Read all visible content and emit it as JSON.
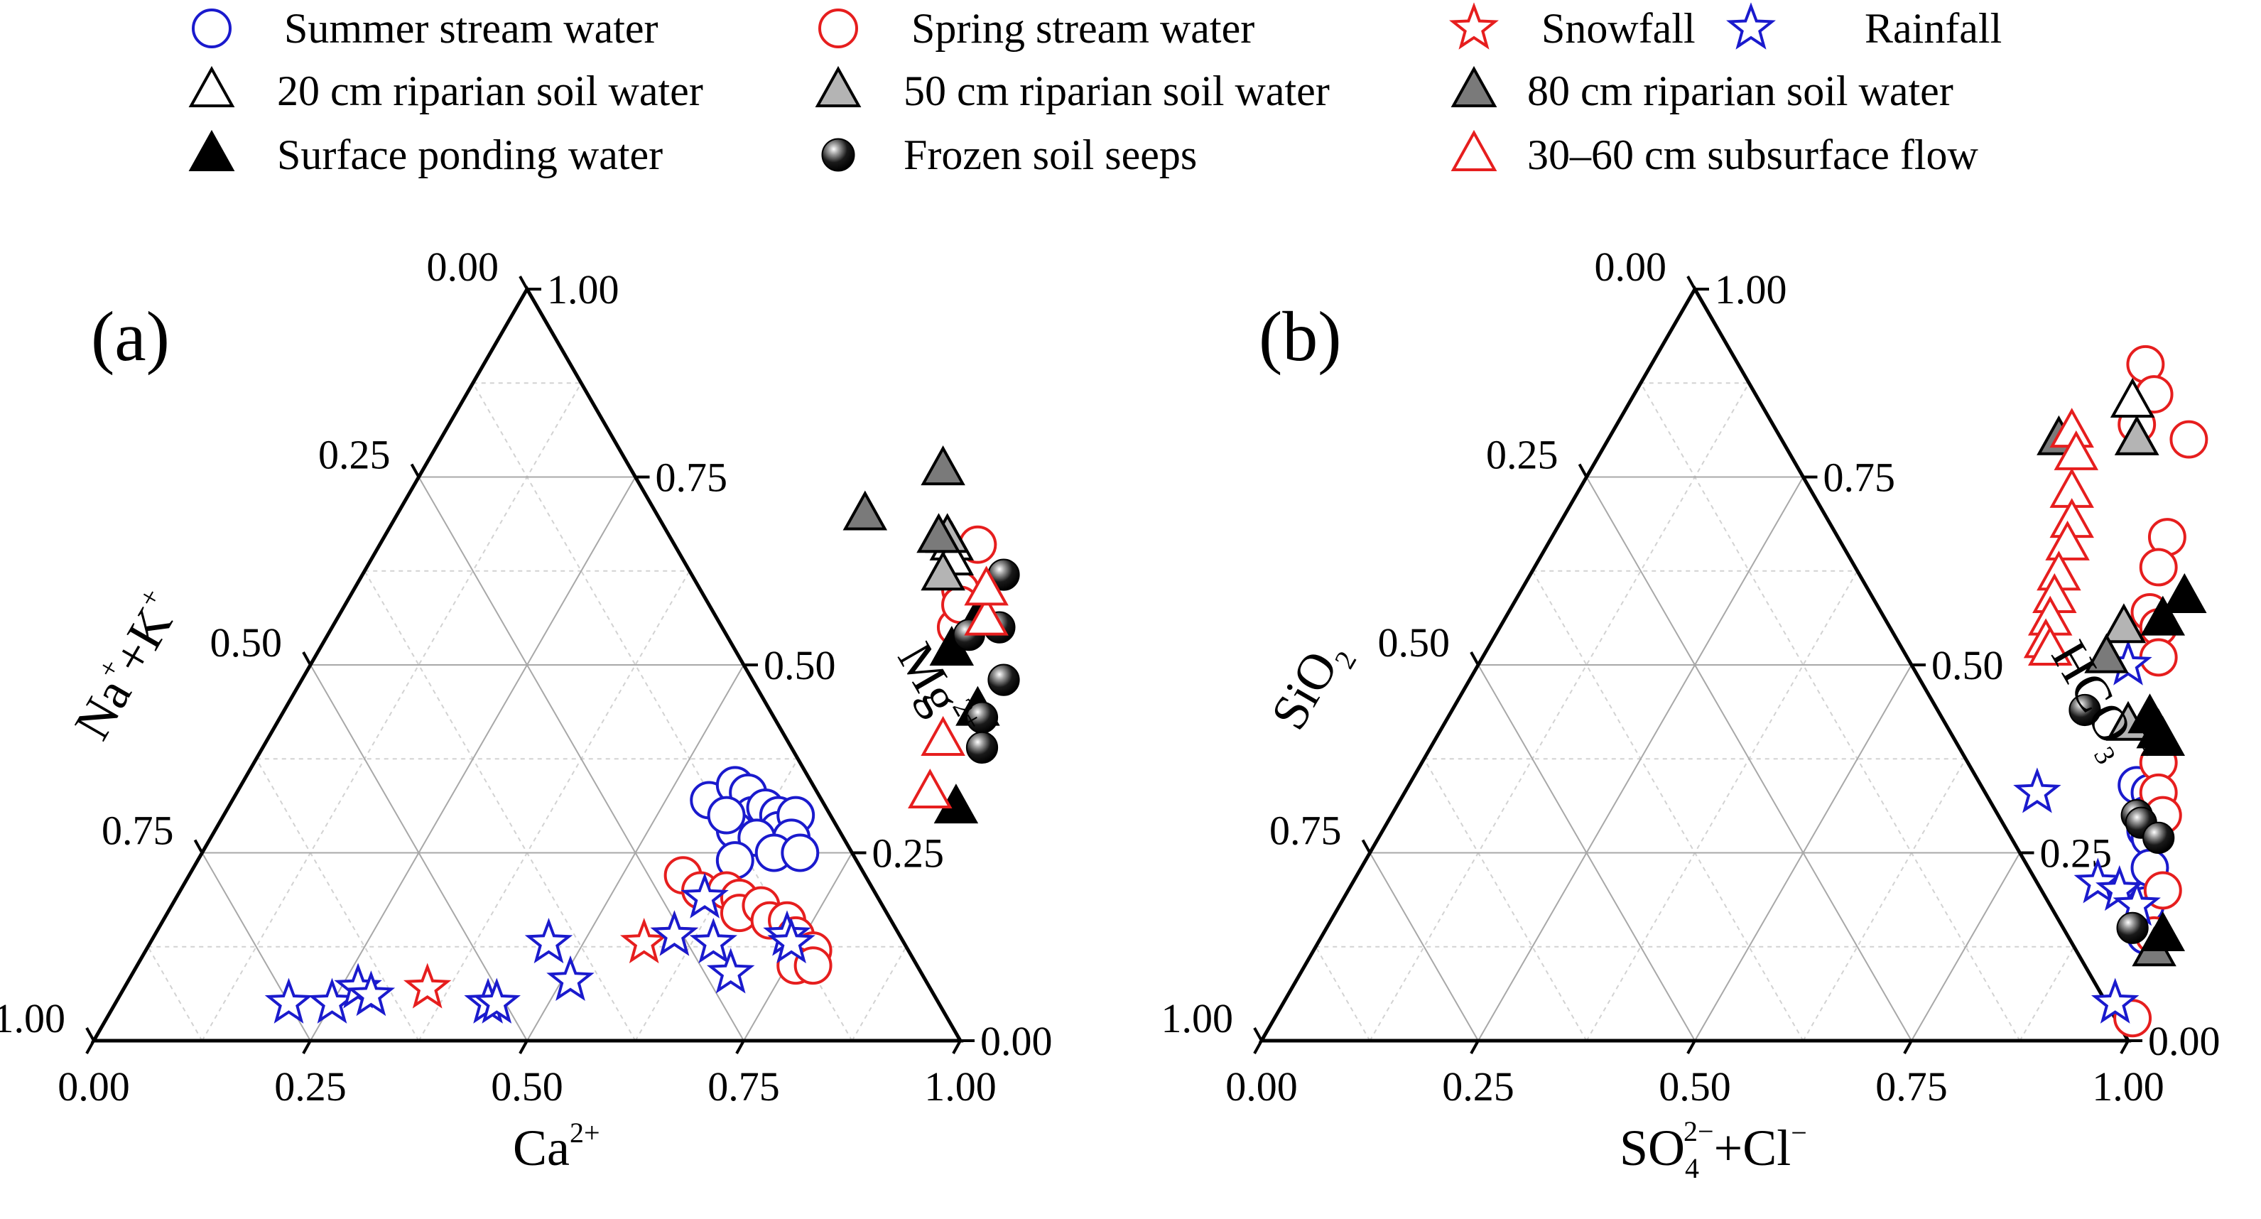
{
  "legend": {
    "items": [
      {
        "key": "summer_stream",
        "label": "Summer stream water"
      },
      {
        "key": "spring_stream",
        "label": "Spring stream water"
      },
      {
        "key": "snowfall",
        "label": "Snowfall"
      },
      {
        "key": "rainfall",
        "label": "Rainfall"
      },
      {
        "key": "soil20",
        "label": "20 cm riparian soil water"
      },
      {
        "key": "soil50",
        "label": "50 cm riparian soil water"
      },
      {
        "key": "soil80",
        "label": "80 cm riparian soil water"
      },
      {
        "key": "ponding",
        "label": "Surface ponding water"
      },
      {
        "key": "seeps",
        "label": "Frozen soil seeps"
      },
      {
        "key": "subsurface",
        "label": "30–60 cm subsurface flow"
      }
    ]
  },
  "chart_data": [
    {
      "type": "scatter",
      "subtype": "ternary",
      "panel_label": "(a)",
      "axes": {
        "bottom": {
          "title": "Ca",
          "title_sup": "2+",
          "ticks": [
            "0.00",
            "0.25",
            "0.50",
            "0.75",
            "1.00"
          ]
        },
        "right": {
          "title": "Mg",
          "title_sup": "2+",
          "ticks": [
            "0.00",
            "0.25",
            "0.50",
            "0.75",
            "1.00"
          ]
        },
        "left": {
          "title": "Na",
          "title_sup": "+",
          "title_mid": "+K",
          "title_sup2": "+",
          "ticks": [
            "1.00",
            "0.75",
            "0.50",
            "0.25",
            "0.00"
          ]
        }
      },
      "series": [
        {
          "name": "Summer stream water",
          "key": "summer_stream",
          "points": [
            [
              0.55,
              0.32
            ],
            [
              0.57,
              0.34
            ],
            [
              0.59,
              0.33
            ],
            [
              0.61,
              0.3
            ],
            [
              0.62,
              0.31
            ],
            [
              0.6,
              0.28
            ],
            [
              0.58,
              0.3
            ],
            [
              0.64,
              0.3
            ],
            [
              0.65,
              0.28
            ],
            [
              0.66,
              0.3
            ],
            [
              0.67,
              0.27
            ],
            [
              0.63,
              0.27
            ],
            [
              0.62,
              0.24
            ],
            [
              0.66,
              0.25
            ],
            [
              0.69,
              0.25
            ]
          ]
        },
        {
          "name": "Spring stream water",
          "key": "spring_stream",
          "points": [
            [
              0.57,
              0.22
            ],
            [
              0.6,
              0.2
            ],
            [
              0.63,
              0.2
            ],
            [
              0.65,
              0.19
            ],
            [
              0.66,
              0.17
            ],
            [
              0.68,
              0.18
            ],
            [
              0.7,
              0.16
            ],
            [
              0.72,
              0.16
            ],
            [
              0.74,
              0.14
            ],
            [
              0.77,
              0.12
            ],
            [
              0.76,
              0.1
            ],
            [
              0.78,
              0.1
            ],
            [
              0.69,
              0.66
            ],
            [
              0.7,
              0.6
            ],
            [
              0.72,
              0.55
            ],
            [
              0.71,
              0.58
            ]
          ]
        },
        {
          "name": "Snowfall",
          "key": "snowfall",
          "points": [
            [
              0.35,
              0.07
            ],
            [
              0.57,
              0.13
            ],
            [
              0.6,
              0.14
            ]
          ]
        },
        {
          "name": "Rainfall",
          "key": "rainfall",
          "points": [
            [
              0.2,
              0.05
            ],
            [
              0.25,
              0.05
            ],
            [
              0.27,
              0.07
            ],
            [
              0.29,
              0.06
            ],
            [
              0.43,
              0.05
            ],
            [
              0.44,
              0.05
            ],
            [
              0.46,
              0.13
            ],
            [
              0.51,
              0.08
            ],
            [
              0.6,
              0.14
            ],
            [
              0.65,
              0.13
            ],
            [
              0.69,
              0.09
            ],
            [
              0.73,
              0.14
            ],
            [
              0.74,
              0.13
            ],
            [
              0.61,
              0.19
            ]
          ]
        },
        {
          "name": "20 cm riparian soil water",
          "key": "soil20",
          "points": [
            [
              0.66,
              0.66
            ],
            [
              0.67,
              0.64
            ]
          ]
        },
        {
          "name": "50 cm riparian soil water",
          "key": "soil50",
          "points": [
            [
              0.65,
              0.67
            ],
            [
              0.67,
              0.62
            ]
          ]
        },
        {
          "name": "80 cm riparian soil water",
          "key": "soil80",
          "points": [
            [
              0.54,
              0.7
            ],
            [
              0.6,
              0.76
            ],
            [
              0.64,
              0.67
            ]
          ]
        },
        {
          "name": "Surface ponding water",
          "key": "ponding",
          "points": [
            [
              0.74,
              0.57
            ],
            [
              0.73,
              0.52
            ],
            [
              0.8,
              0.44
            ],
            [
              0.84,
              0.31
            ]
          ]
        },
        {
          "name": "Frozen soil seeps",
          "key": "seeps",
          "points": [
            [
              0.74,
              0.62
            ],
            [
              0.74,
              0.54
            ],
            [
              0.77,
              0.55
            ],
            [
              0.81,
              0.48
            ],
            [
              0.81,
              0.43
            ],
            [
              0.83,
              0.39
            ]
          ]
        },
        {
          "name": "30–60 cm subsurface flow",
          "key": "subsurface",
          "points": [
            [
              0.78,
              0.4
            ],
            [
              0.8,
              0.33
            ],
            [
              0.75,
              0.56
            ],
            [
              0.73,
              0.6
            ]
          ]
        }
      ]
    },
    {
      "type": "scatter",
      "subtype": "ternary",
      "panel_label": "(b)",
      "axes": {
        "bottom": {
          "title": "SO",
          "title_sub": "4",
          "title_sup": "2−",
          "title_tail": "+Cl",
          "title_tail_sup": "−",
          "ticks": [
            "0.00",
            "0.25",
            "0.50",
            "0.75",
            "1.00"
          ]
        },
        "right": {
          "title": "HCO",
          "title_sub": "3",
          "title_sup": "−",
          "ticks": [
            "0.00",
            "0.25",
            "0.50",
            "0.75",
            "1.00"
          ]
        },
        "left": {
          "title": "SiO",
          "title_sub": "2",
          "ticks": [
            "1.00",
            "0.75",
            "0.50",
            "0.25",
            "0.00"
          ]
        }
      },
      "series": [
        {
          "name": "Summer stream water",
          "key": "summer_stream",
          "points": [
            [
              0.84,
              0.34
            ],
            [
              0.86,
              0.33
            ],
            [
              0.87,
              0.3
            ],
            [
              0.88,
              0.28
            ],
            [
              0.89,
              0.27
            ],
            [
              0.91,
              0.23
            ],
            [
              0.93,
              0.18
            ],
            [
              0.95,
              0.14
            ]
          ]
        },
        {
          "name": "Spring stream water",
          "key": "spring_stream",
          "points": [
            [
              0.57,
              0.9
            ],
            [
              0.6,
              0.86
            ],
            [
              0.6,
              0.82
            ],
            [
              0.67,
              0.8
            ],
            [
              0.71,
              0.67
            ],
            [
              0.72,
              0.63
            ],
            [
              0.74,
              0.57
            ],
            [
              0.76,
              0.55
            ],
            [
              0.78,
              0.51
            ],
            [
              0.85,
              0.37
            ],
            [
              0.87,
              0.33
            ],
            [
              0.89,
              0.3
            ],
            [
              0.94,
              0.2
            ],
            [
              0.96,
              0.14
            ],
            [
              0.99,
              0.03
            ]
          ]
        },
        {
          "name": "Snowfall",
          "key": "snowfall",
          "points": []
        },
        {
          "name": "Rainfall",
          "key": "rainfall",
          "points": [
            [
              0.75,
              0.5
            ],
            [
              0.73,
              0.33
            ],
            [
              0.86,
              0.21
            ],
            [
              0.89,
              0.2
            ],
            [
              0.92,
              0.18
            ],
            [
              0.96,
              0.05
            ]
          ]
        },
        {
          "name": "20 cm riparian soil water",
          "key": "soil20",
          "points": [
            [
              0.58,
              0.85
            ],
            [
              0.61,
              0.8
            ]
          ]
        },
        {
          "name": "50 cm riparian soil water",
          "key": "soil50",
          "points": [
            [
              0.61,
              0.8
            ],
            [
              0.72,
              0.55
            ],
            [
              0.79,
              0.42
            ]
          ]
        },
        {
          "name": "80 cm riparian soil water",
          "key": "soil80",
          "points": [
            [
              0.52,
              0.8
            ],
            [
              0.72,
              0.51
            ],
            [
              0.97,
              0.12
            ]
          ]
        },
        {
          "name": "Surface ponding water",
          "key": "ponding",
          "points": [
            [
              0.77,
              0.59
            ],
            [
              0.76,
              0.56
            ],
            [
              0.81,
              0.43
            ],
            [
              0.83,
              0.41
            ],
            [
              0.84,
              0.4
            ],
            [
              0.97,
              0.14
            ]
          ]
        },
        {
          "name": "Frozen soil seeps",
          "key": "seeps",
          "points": [
            [
              0.73,
              0.44
            ],
            [
              0.86,
              0.3
            ],
            [
              0.87,
              0.29
            ],
            [
              0.9,
              0.27
            ],
            [
              0.93,
              0.15
            ]
          ]
        },
        {
          "name": "30–60 cm subsurface flow",
          "key": "subsurface",
          "points": [
            [
              0.53,
              0.81
            ],
            [
              0.55,
              0.78
            ],
            [
              0.57,
              0.73
            ],
            [
              0.59,
              0.69
            ],
            [
              0.6,
              0.66
            ],
            [
              0.61,
              0.62
            ],
            [
              0.62,
              0.59
            ],
            [
              0.63,
              0.56
            ],
            [
              0.64,
              0.53
            ],
            [
              0.65,
              0.52
            ]
          ]
        }
      ]
    }
  ],
  "styles": {
    "summer_stream": {
      "marker": "circle",
      "stroke": "#1a1acd",
      "fill": "#ffffff"
    },
    "spring_stream": {
      "marker": "circle",
      "stroke": "#e61e1e",
      "fill": "#ffffff"
    },
    "snowfall": {
      "marker": "star",
      "stroke": "#e61e1e",
      "fill": "#ffffff"
    },
    "rainfall": {
      "marker": "star",
      "stroke": "#1a1acd",
      "fill": "#ffffff"
    },
    "soil20": {
      "marker": "triangle",
      "stroke": "#000000",
      "fill": "#ffffff"
    },
    "soil50": {
      "marker": "triangle",
      "stroke": "#000000",
      "fill": "#b4b4b4"
    },
    "soil80": {
      "marker": "triangle",
      "stroke": "#000000",
      "fill": "#7a7a7a"
    },
    "ponding": {
      "marker": "triangle",
      "stroke": "#000000",
      "fill": "#000000"
    },
    "seeps": {
      "marker": "sphere",
      "stroke": "#000000",
      "fill": "#000000"
    },
    "subsurface": {
      "marker": "triangle",
      "stroke": "#e61e1e",
      "fill": "#ffffff"
    }
  }
}
